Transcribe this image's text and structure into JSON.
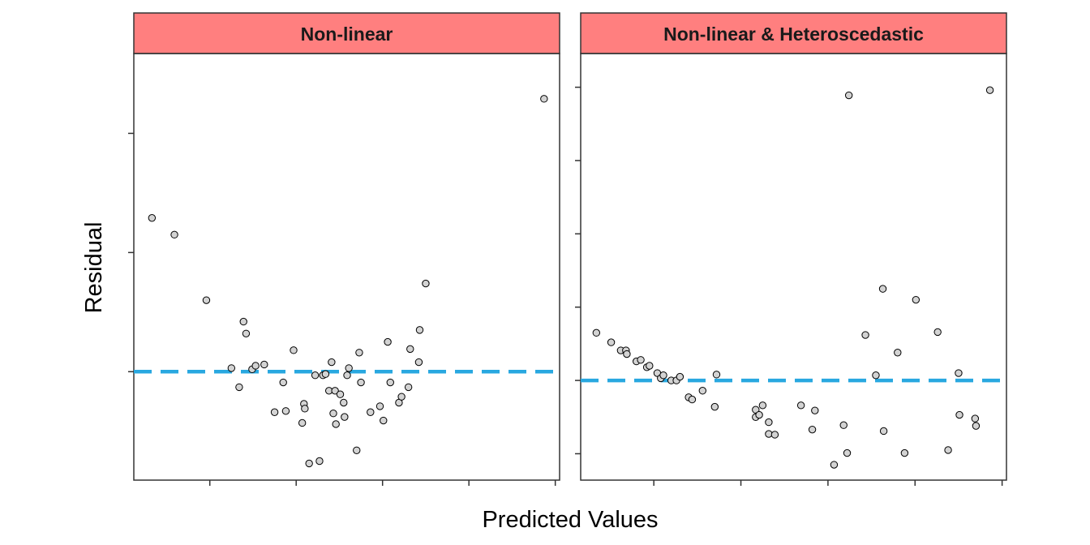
{
  "chart_data": {
    "type": "scatter",
    "xlabel": "Predicted Values",
    "ylabel": "Residual",
    "tick_labels_visible": false,
    "grid": false,
    "colors": {
      "strip": "#ff7f7f",
      "point_fill": "#d3d3d3",
      "point_stroke": "#000000",
      "reference_line": "#29a8e0"
    },
    "panels": [
      {
        "title": "Non-linear",
        "xlim": [
          -0.88,
          4.05
        ],
        "ylim": [
          -0.91,
          2.67
        ],
        "x_ticks": [
          0,
          1,
          2,
          3,
          4
        ],
        "y_ticks": [
          0,
          1,
          2
        ],
        "reference_line_y": 0,
        "points": [
          {
            "x": -0.67,
            "y": 1.29
          },
          {
            "x": -0.41,
            "y": 1.15
          },
          {
            "x": -0.04,
            "y": 0.6
          },
          {
            "x": 0.25,
            "y": 0.03
          },
          {
            "x": 0.34,
            "y": -0.13
          },
          {
            "x": 0.39,
            "y": 0.42
          },
          {
            "x": 0.42,
            "y": 0.32
          },
          {
            "x": 0.49,
            "y": 0.02
          },
          {
            "x": 0.53,
            "y": 0.05
          },
          {
            "x": 0.63,
            "y": 0.06
          },
          {
            "x": 0.75,
            "y": -0.34
          },
          {
            "x": 0.85,
            "y": -0.09
          },
          {
            "x": 0.88,
            "y": -0.33
          },
          {
            "x": 0.97,
            "y": 0.18
          },
          {
            "x": 1.07,
            "y": -0.43
          },
          {
            "x": 1.09,
            "y": -0.27
          },
          {
            "x": 1.1,
            "y": -0.31
          },
          {
            "x": 1.15,
            "y": -0.77
          },
          {
            "x": 1.22,
            "y": -0.03
          },
          {
            "x": 1.27,
            "y": -0.75
          },
          {
            "x": 1.31,
            "y": -0.03
          },
          {
            "x": 1.34,
            "y": -0.02
          },
          {
            "x": 1.38,
            "y": -0.16
          },
          {
            "x": 1.41,
            "y": 0.08
          },
          {
            "x": 1.43,
            "y": -0.35
          },
          {
            "x": 1.45,
            "y": -0.16
          },
          {
            "x": 1.46,
            "y": -0.44
          },
          {
            "x": 1.51,
            "y": -0.19
          },
          {
            "x": 1.55,
            "y": -0.26
          },
          {
            "x": 1.56,
            "y": -0.38
          },
          {
            "x": 1.59,
            "y": -0.03
          },
          {
            "x": 1.61,
            "y": 0.03
          },
          {
            "x": 1.7,
            "y": -0.66
          },
          {
            "x": 1.73,
            "y": 0.16
          },
          {
            "x": 1.75,
            "y": -0.09
          },
          {
            "x": 1.86,
            "y": -0.34
          },
          {
            "x": 1.97,
            "y": -0.29
          },
          {
            "x": 2.01,
            "y": -0.41
          },
          {
            "x": 2.06,
            "y": 0.25
          },
          {
            "x": 2.09,
            "y": -0.09
          },
          {
            "x": 2.19,
            "y": -0.26
          },
          {
            "x": 2.22,
            "y": -0.21
          },
          {
            "x": 2.3,
            "y": -0.13
          },
          {
            "x": 2.32,
            "y": 0.19
          },
          {
            "x": 2.42,
            "y": 0.08
          },
          {
            "x": 2.43,
            "y": 0.35
          },
          {
            "x": 2.5,
            "y": 0.74
          },
          {
            "x": 3.87,
            "y": 2.29
          }
        ]
      },
      {
        "title": "Non-linear & Heteroscedastic",
        "xlim": [
          -0.84,
          4.05
        ],
        "ylim": [
          -1.36,
          4.46
        ],
        "x_ticks": [
          0,
          1,
          2,
          3,
          4
        ],
        "y_ticks": [
          -1,
          0,
          1,
          2,
          3,
          4
        ],
        "reference_line_y": 0,
        "points": [
          {
            "x": -0.66,
            "y": 0.65
          },
          {
            "x": -0.49,
            "y": 0.52
          },
          {
            "x": -0.38,
            "y": 0.41
          },
          {
            "x": -0.32,
            "y": 0.41
          },
          {
            "x": -0.31,
            "y": 0.36
          },
          {
            "x": -0.2,
            "y": 0.26
          },
          {
            "x": -0.15,
            "y": 0.28
          },
          {
            "x": -0.08,
            "y": 0.18
          },
          {
            "x": -0.05,
            "y": 0.2
          },
          {
            "x": 0.04,
            "y": 0.1
          },
          {
            "x": 0.08,
            "y": 0.03
          },
          {
            "x": 0.11,
            "y": 0.07
          },
          {
            "x": 0.2,
            "y": 0.0
          },
          {
            "x": 0.26,
            "y": 0.0
          },
          {
            "x": 0.3,
            "y": 0.05
          },
          {
            "x": 0.4,
            "y": -0.23
          },
          {
            "x": 0.44,
            "y": -0.26
          },
          {
            "x": 0.56,
            "y": -0.14
          },
          {
            "x": 0.7,
            "y": -0.36
          },
          {
            "x": 0.72,
            "y": 0.08
          },
          {
            "x": 1.17,
            "y": -0.4
          },
          {
            "x": 1.17,
            "y": -0.5
          },
          {
            "x": 1.21,
            "y": -0.47
          },
          {
            "x": 1.25,
            "y": -0.34
          },
          {
            "x": 1.32,
            "y": -0.57
          },
          {
            "x": 1.32,
            "y": -0.73
          },
          {
            "x": 1.39,
            "y": -0.74
          },
          {
            "x": 1.69,
            "y": -0.34
          },
          {
            "x": 1.82,
            "y": -0.67
          },
          {
            "x": 1.85,
            "y": -0.41
          },
          {
            "x": 2.07,
            "y": -1.15
          },
          {
            "x": 2.18,
            "y": -0.61
          },
          {
            "x": 2.22,
            "y": -0.99
          },
          {
            "x": 2.24,
            "y": 3.89
          },
          {
            "x": 2.43,
            "y": 0.62
          },
          {
            "x": 2.55,
            "y": 0.07
          },
          {
            "x": 2.63,
            "y": 1.25
          },
          {
            "x": 2.64,
            "y": -0.69
          },
          {
            "x": 2.8,
            "y": 0.38
          },
          {
            "x": 2.88,
            "y": -0.99
          },
          {
            "x": 3.01,
            "y": 1.1
          },
          {
            "x": 3.26,
            "y": 0.66
          },
          {
            "x": 3.38,
            "y": -0.95
          },
          {
            "x": 3.5,
            "y": 0.1
          },
          {
            "x": 3.51,
            "y": -0.47
          },
          {
            "x": 3.69,
            "y": -0.52
          },
          {
            "x": 3.7,
            "y": -0.62
          },
          {
            "x": 3.86,
            "y": 3.96
          }
        ]
      }
    ]
  }
}
